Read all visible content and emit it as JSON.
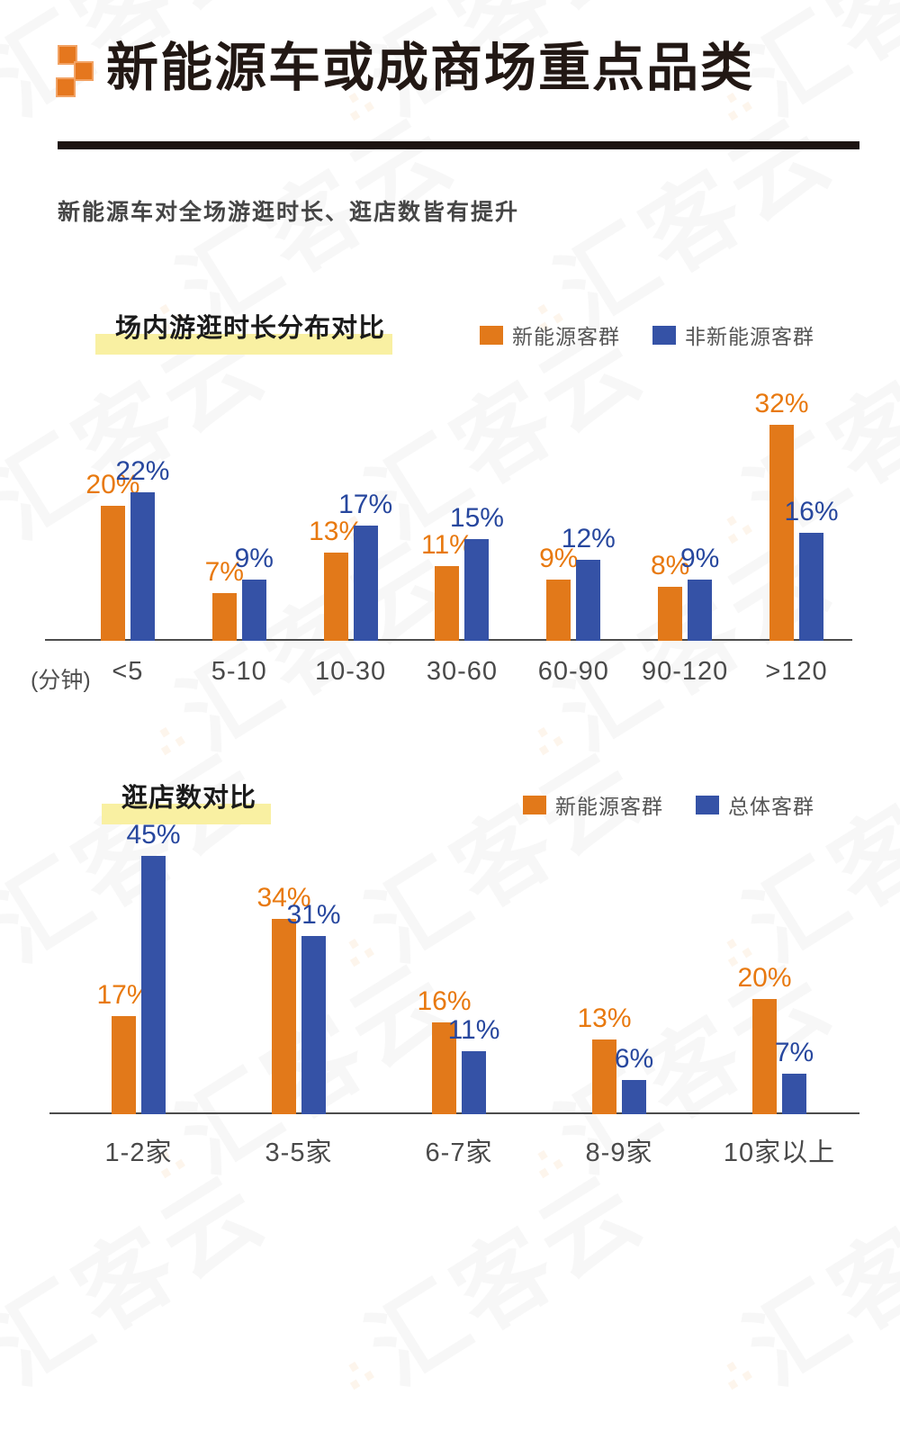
{
  "page": {
    "title": "新能源车或成商场重点品类",
    "subtitle": "新能源车对全场游逛时长、逛店数皆有提升",
    "watermark_text": "汇客云"
  },
  "colors": {
    "orange": "#e2791a",
    "blue": "#3552a6",
    "orange_label": "#e8790f",
    "blue_label": "#27479e",
    "highlight_yellow": "#f9f0a2",
    "divider_black": "#1d1411"
  },
  "chart_data": [
    {
      "type": "bar",
      "title": "场内游逛时长分布对比",
      "unit_label": "(分钟)",
      "categories": [
        "<5",
        "5-10",
        "10-30",
        "30-60",
        "60-90",
        "90-120",
        ">120"
      ],
      "series": [
        {
          "name": "新能源客群",
          "color": "#e2791a",
          "label_color": "#e8790f",
          "values": [
            20,
            7,
            13,
            11,
            9,
            8,
            32
          ]
        },
        {
          "name": "非新能源客群",
          "color": "#3552a6",
          "label_color": "#27479e",
          "values": [
            22,
            9,
            17,
            15,
            12,
            9,
            16
          ]
        }
      ],
      "value_suffix": "%",
      "ylim": [
        0,
        34
      ],
      "grid": false,
      "legend_position": "top-right"
    },
    {
      "type": "bar",
      "title": "逛店数对比",
      "unit_label": "",
      "categories": [
        "1-2家",
        "3-5家",
        "6-7家",
        "8-9家",
        "10家以上"
      ],
      "series": [
        {
          "name": "新能源客群",
          "color": "#e2791a",
          "label_color": "#e8790f",
          "values": [
            17,
            34,
            16,
            13,
            20
          ]
        },
        {
          "name": "总体客群",
          "color": "#3552a6",
          "label_color": "#27479e",
          "values": [
            45,
            31,
            11,
            6,
            7
          ]
        }
      ],
      "value_suffix": "%",
      "ylim": [
        0,
        47
      ],
      "grid": false,
      "legend_position": "top-right"
    }
  ]
}
